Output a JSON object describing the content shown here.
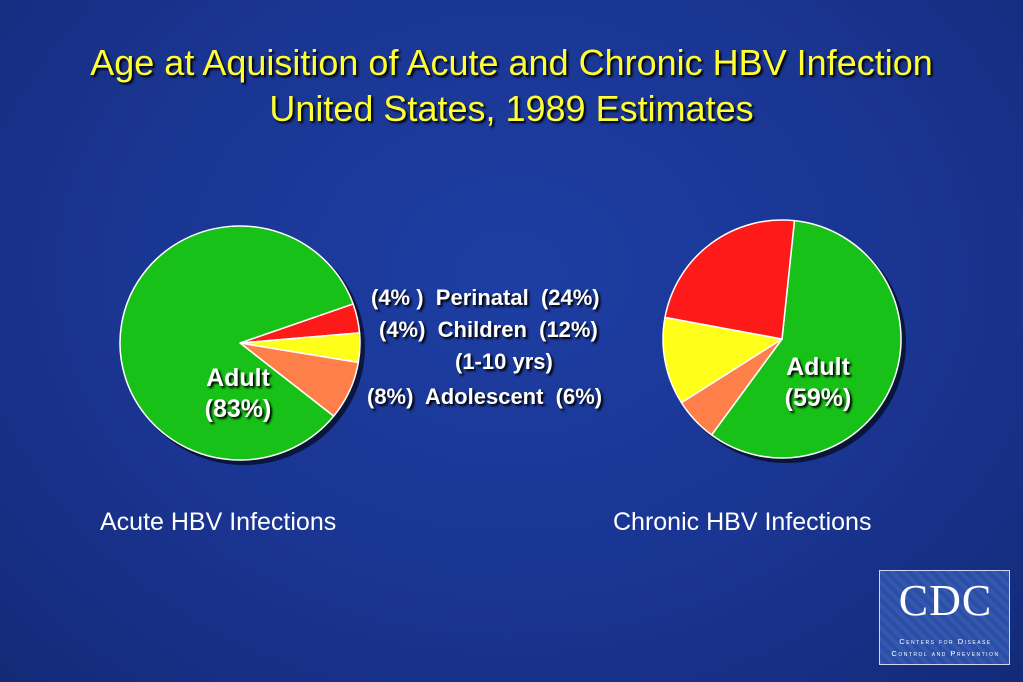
{
  "title_line1": "Age at Aquisition of Acute and Chronic HBV Infection",
  "title_line2": "United States, 1989 Estimates",
  "colors": {
    "adult": "#17c117",
    "perinatal": "#ff1a1a",
    "children": "#ffff19",
    "adolescent": "#ff7f4a",
    "title": "#ffff33"
  },
  "legend": {
    "perinatal": "(4% )  Perinatal  (24%)",
    "children": "(4%)  Children  (12%)",
    "children_sub": "(1-10 yrs)",
    "adolescent": "(8%)  Adolescent  (6%)"
  },
  "chart_data": [
    {
      "type": "pie",
      "title": "Acute HBV Infections",
      "slices": [
        {
          "label": "Adult",
          "value": 83,
          "display": [
            "Adult",
            "(83%)"
          ]
        },
        {
          "label": "Perinatal",
          "value": 4
        },
        {
          "label": "Children (1-10 yrs)",
          "value": 4
        },
        {
          "label": "Adolescent",
          "value": 8
        }
      ]
    },
    {
      "type": "pie",
      "title": "Chronic HBV Infections",
      "slices": [
        {
          "label": "Adult",
          "value": 59,
          "display": [
            "Adult",
            "(59%)"
          ]
        },
        {
          "label": "Perinatal",
          "value": 24
        },
        {
          "label": "Children (1-10 yrs)",
          "value": 12
        },
        {
          "label": "Adolescent",
          "value": 6
        }
      ]
    }
  ],
  "logo": {
    "text": "CDC",
    "line1": "Centers for Disease",
    "line2": "Control and Prevention"
  }
}
